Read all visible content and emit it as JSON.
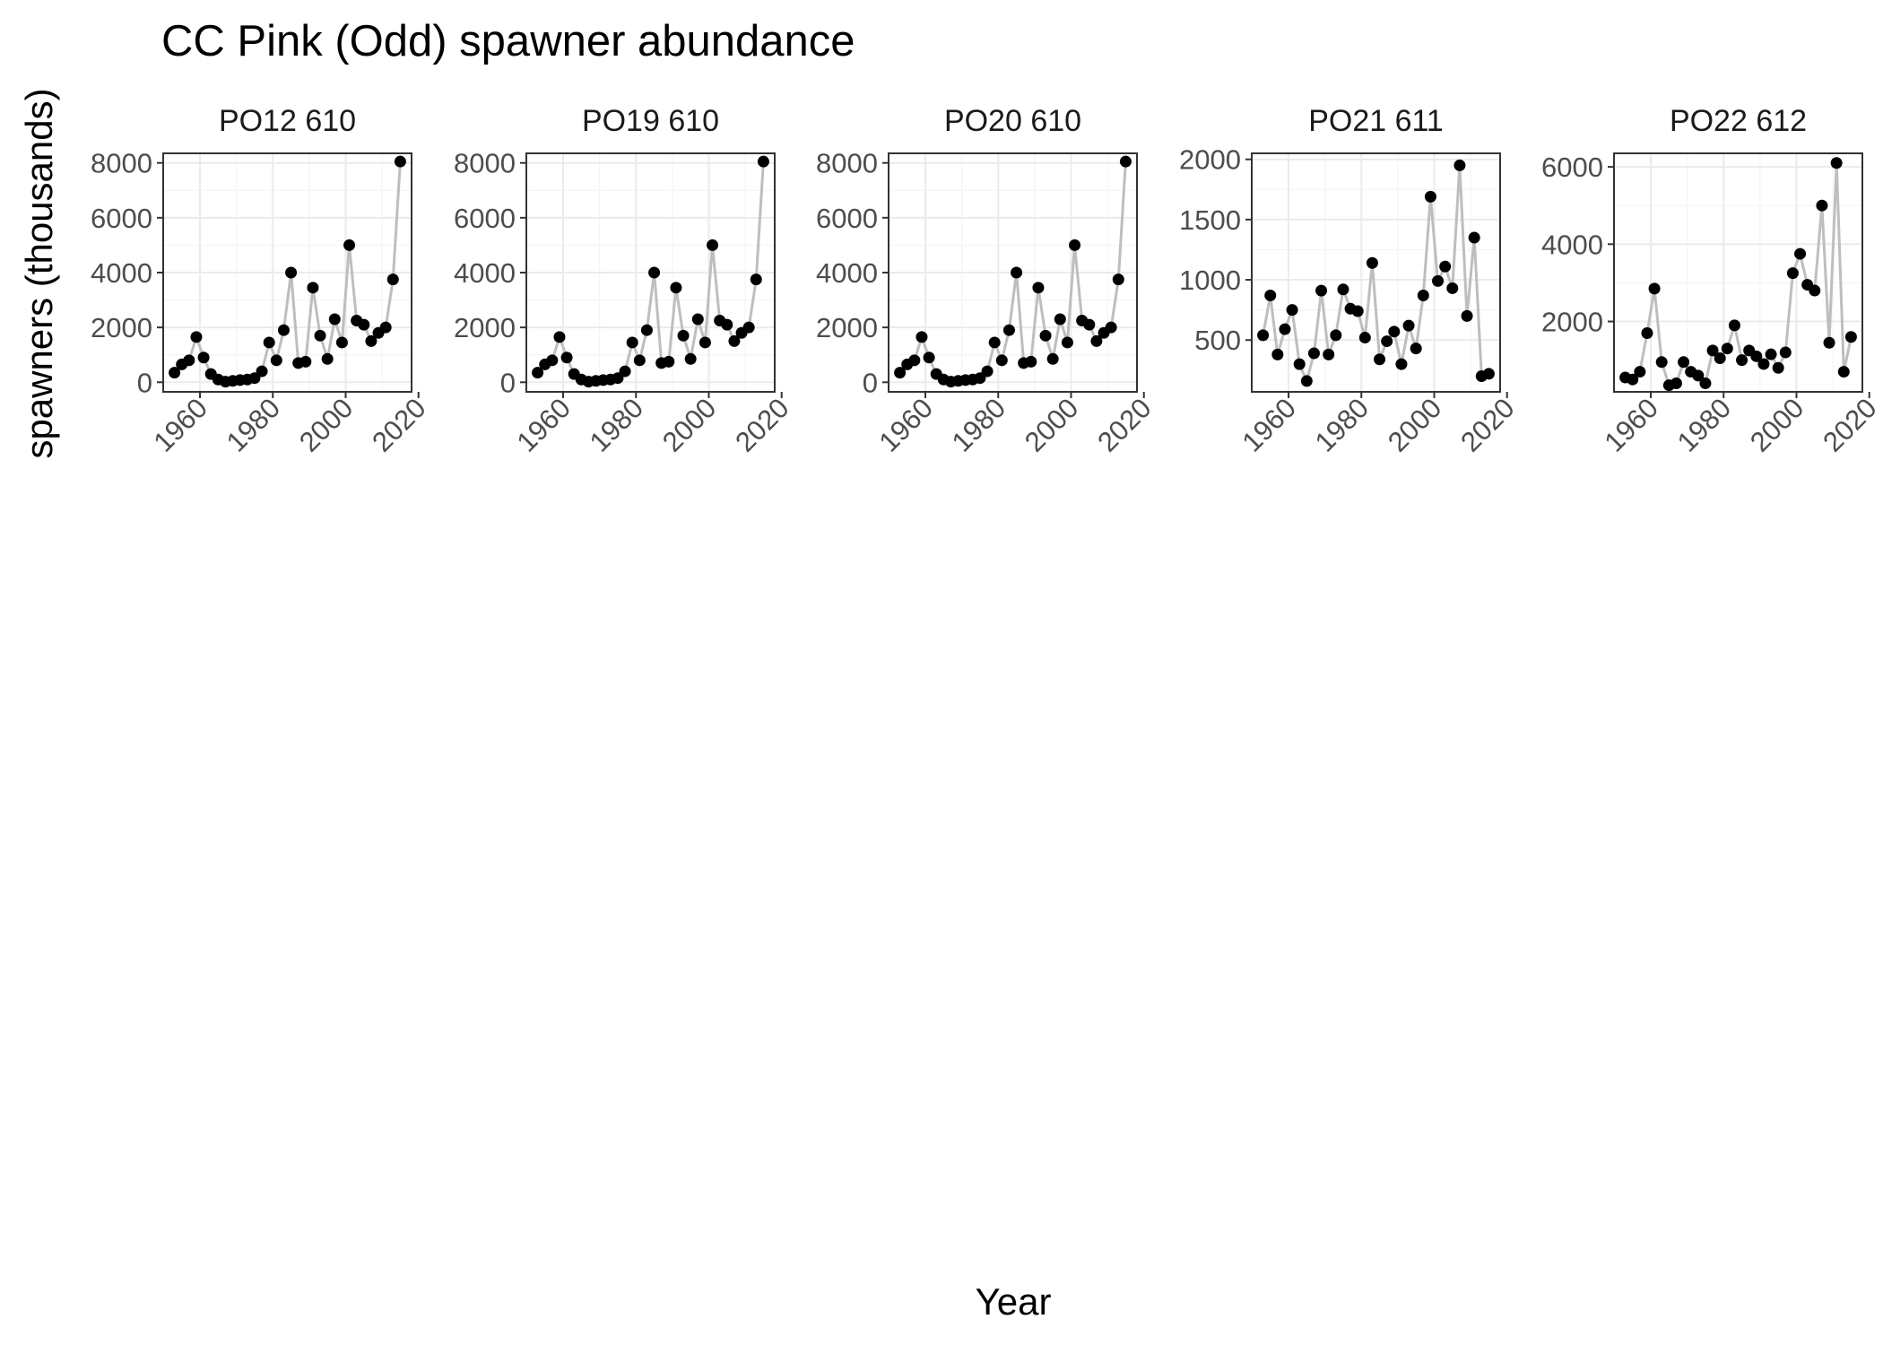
{
  "chart_data": {
    "type": "line",
    "title": "CC Pink (Odd) spawner abundance",
    "xlabel": "Year",
    "ylabel": "spawners (thousands)",
    "x_ticks": [
      1960,
      1980,
      2000,
      2020
    ],
    "line_color": "#bebebe",
    "point_color": "#000000",
    "grid": true,
    "panels": [
      {
        "name": "PO12 610",
        "ylim": [
          -350,
          8350
        ],
        "y_ticks": [
          0,
          2000,
          4000,
          6000,
          8000
        ],
        "x": [
          1953,
          1955,
          1957,
          1959,
          1961,
          1963,
          1965,
          1967,
          1969,
          1971,
          1973,
          1975,
          1977,
          1979,
          1981,
          1983,
          1985,
          1987,
          1989,
          1991,
          1993,
          1995,
          1997,
          1999,
          2001,
          2003,
          2005,
          2007,
          2009,
          2011,
          2013,
          2015
        ],
        "y": [
          350,
          650,
          800,
          1650,
          900,
          300,
          100,
          20,
          50,
          80,
          100,
          150,
          400,
          1450,
          800,
          1900,
          4000,
          700,
          750,
          3450,
          1700,
          850,
          2300,
          1450,
          5000,
          2250,
          2100,
          1500,
          1800,
          2000,
          3750,
          8050
        ]
      },
      {
        "name": "PO19 610",
        "ylim": [
          -350,
          8350
        ],
        "y_ticks": [
          0,
          2000,
          4000,
          6000,
          8000
        ],
        "x": [
          1953,
          1955,
          1957,
          1959,
          1961,
          1963,
          1965,
          1967,
          1969,
          1971,
          1973,
          1975,
          1977,
          1979,
          1981,
          1983,
          1985,
          1987,
          1989,
          1991,
          1993,
          1995,
          1997,
          1999,
          2001,
          2003,
          2005,
          2007,
          2009,
          2011,
          2013,
          2015
        ],
        "y": [
          350,
          650,
          800,
          1650,
          900,
          300,
          100,
          20,
          50,
          80,
          100,
          150,
          400,
          1450,
          800,
          1900,
          4000,
          700,
          750,
          3450,
          1700,
          850,
          2300,
          1450,
          5000,
          2250,
          2100,
          1500,
          1800,
          2000,
          3750,
          8050
        ]
      },
      {
        "name": "PO20 610",
        "ylim": [
          -350,
          8350
        ],
        "y_ticks": [
          0,
          2000,
          4000,
          6000,
          8000
        ],
        "x": [
          1953,
          1955,
          1957,
          1959,
          1961,
          1963,
          1965,
          1967,
          1969,
          1971,
          1973,
          1975,
          1977,
          1979,
          1981,
          1983,
          1985,
          1987,
          1989,
          1991,
          1993,
          1995,
          1997,
          1999,
          2001,
          2003,
          2005,
          2007,
          2009,
          2011,
          2013,
          2015
        ],
        "y": [
          350,
          650,
          800,
          1650,
          900,
          300,
          100,
          20,
          50,
          80,
          100,
          150,
          400,
          1450,
          800,
          1900,
          4000,
          700,
          750,
          3450,
          1700,
          850,
          2300,
          1450,
          5000,
          2250,
          2100,
          1500,
          1800,
          2000,
          3750,
          8050
        ]
      },
      {
        "name": "PO21 611",
        "ylim": [
          70,
          2050
        ],
        "y_ticks": [
          500,
          1000,
          1500,
          2000
        ],
        "x": [
          1953,
          1955,
          1957,
          1959,
          1961,
          1963,
          1965,
          1967,
          1969,
          1971,
          1973,
          1975,
          1977,
          1979,
          1981,
          1983,
          1985,
          1987,
          1989,
          1991,
          1993,
          1995,
          1997,
          1999,
          2001,
          2003,
          2005,
          2007,
          2009,
          2011,
          2013,
          2015
        ],
        "y": [
          540,
          870,
          380,
          590,
          750,
          300,
          160,
          390,
          910,
          380,
          540,
          920,
          760,
          740,
          520,
          1140,
          340,
          490,
          570,
          300,
          620,
          430,
          870,
          1690,
          990,
          1110,
          930,
          1950,
          700,
          1350,
          200,
          220
        ]
      },
      {
        "name": "PO22 612",
        "ylim": [
          180,
          6350
        ],
        "y_ticks": [
          2000,
          4000,
          6000
        ],
        "x": [
          1953,
          1955,
          1957,
          1959,
          1961,
          1963,
          1965,
          1967,
          1969,
          1971,
          1973,
          1975,
          1977,
          1979,
          1981,
          1983,
          1985,
          1987,
          1989,
          1991,
          1993,
          1995,
          1997,
          1999,
          2001,
          2003,
          2005,
          2007,
          2009,
          2011,
          2013,
          2015
        ],
        "y": [
          550,
          500,
          700,
          1700,
          2850,
          950,
          350,
          400,
          950,
          700,
          600,
          400,
          1250,
          1050,
          1300,
          1900,
          1000,
          1250,
          1100,
          900,
          1150,
          800,
          1200,
          3250,
          3750,
          2950,
          2800,
          5000,
          1450,
          6100,
          700,
          1600
        ]
      }
    ]
  }
}
